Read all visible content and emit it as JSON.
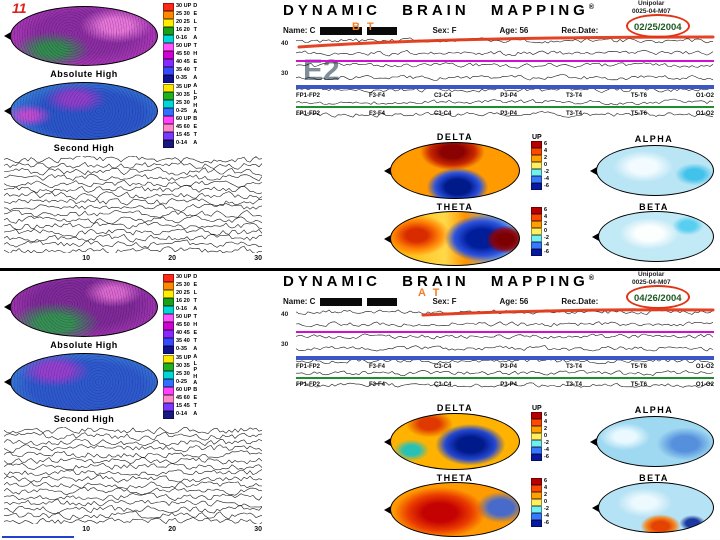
{
  "page": {
    "number": "11"
  },
  "colors": {
    "accent-red": "#e23414",
    "annotation-orange": "#ef7f2a",
    "date-green": "#1d5a22",
    "line-magenta": "#cf10cf",
    "line-blue": "#3c57c4",
    "line-green": "#1d8f2c",
    "trace": "#1a1a1a"
  },
  "left_scale1": {
    "bands": [
      {
        "name": "DELTA"
      },
      {
        "name": "THETA"
      }
    ],
    "segments": [
      {
        "c": "#ff2818",
        "t": "30 UP"
      },
      {
        "c": "#ff8800",
        "t": "25 30"
      },
      {
        "c": "#ffee00",
        "t": "20 25"
      },
      {
        "c": "#18a018",
        "t": "16 20"
      },
      {
        "c": "#00d8d8",
        "t": "0-16"
      },
      {
        "c": "#ff50ff",
        "t": "50 UP"
      },
      {
        "c": "#d000d0",
        "t": "45 50"
      },
      {
        "c": "#8828ff",
        "t": "40 45"
      },
      {
        "c": "#3848ff",
        "t": "35 40"
      },
      {
        "c": "#101090",
        "t": "0-35"
      }
    ]
  },
  "left_scale2": {
    "bands": [
      {
        "name": "ALPHA"
      },
      {
        "name": "BETA"
      }
    ],
    "segments": [
      {
        "c": "#ffe800",
        "t": "35 UP"
      },
      {
        "c": "#20b020",
        "t": "30 35"
      },
      {
        "c": "#00d8d8",
        "t": "25 30"
      },
      {
        "c": "#3070ff",
        "t": "0-25"
      },
      {
        "c": "#ff40ff",
        "t": "60 UP"
      },
      {
        "c": "#ff88c8",
        "t": "45 60"
      },
      {
        "c": "#7838ff",
        "t": "15 45"
      },
      {
        "c": "#181880",
        "t": "0-14"
      }
    ]
  },
  "right_scale": {
    "up": "UP",
    "segments": [
      {
        "c": "#b80000",
        "t": "6"
      },
      {
        "c": "#ff4800",
        "t": "4"
      },
      {
        "c": "#ffa000",
        "t": "2"
      },
      {
        "c": "#fff060",
        "t": "0"
      },
      {
        "c": "#70f0f0",
        "t": "-2"
      },
      {
        "c": "#3878ff",
        "t": "-4"
      },
      {
        "c": "#0818a0",
        "t": "-6"
      }
    ]
  },
  "channels": [
    "FP1-FP2",
    "F3-F4",
    "C3-C4",
    "P3-P4",
    "T3-T4",
    "T5-T6",
    "O1-O2"
  ],
  "panels": [
    {
      "header": {
        "title": "DYNAMIC BRAIN MAPPING",
        "reg": "®",
        "mode": "Unipolar",
        "serial": "0025-04-M07",
        "date": "02/25/2004"
      },
      "patient": {
        "name_label": "Name: C",
        "sex_label": "Sex: F",
        "age_label": "Age: 56",
        "rec_label": "Rec.Date:"
      },
      "annotations": {
        "mark": "B T",
        "big": "E2"
      },
      "left": {
        "map1_label": "Absolute High",
        "map2_label": "Second High",
        "xticks": [
          "10",
          "20",
          "30"
        ]
      },
      "right": {
        "amp1": "40",
        "amp2": "30",
        "maps": {
          "delta": "DELTA",
          "alpha": "ALPHA",
          "theta": "THETA",
          "beta": "BETA"
        }
      }
    },
    {
      "header": {
        "title": "DYNAMIC BRAIN MAPPING",
        "reg": "®",
        "mode": "Unipolar",
        "serial": "0025-04-M07",
        "date": "04/26/2004"
      },
      "patient": {
        "name_label": "Name: C",
        "sex_label": "Sex: F",
        "age_label": "Age: 56",
        "rec_label": "Rec.Date:"
      },
      "annotations": {
        "mark": "A T",
        "big": ""
      },
      "left": {
        "map1_label": "Absolute High",
        "map2_label": "Second High",
        "xticks": [
          "10",
          "20",
          "30"
        ]
      },
      "right": {
        "amp1": "40",
        "amp2": "30",
        "maps": {
          "delta": "DELTA",
          "alpha": "ALPHA",
          "theta": "THETA",
          "beta": "BETA"
        }
      }
    }
  ]
}
